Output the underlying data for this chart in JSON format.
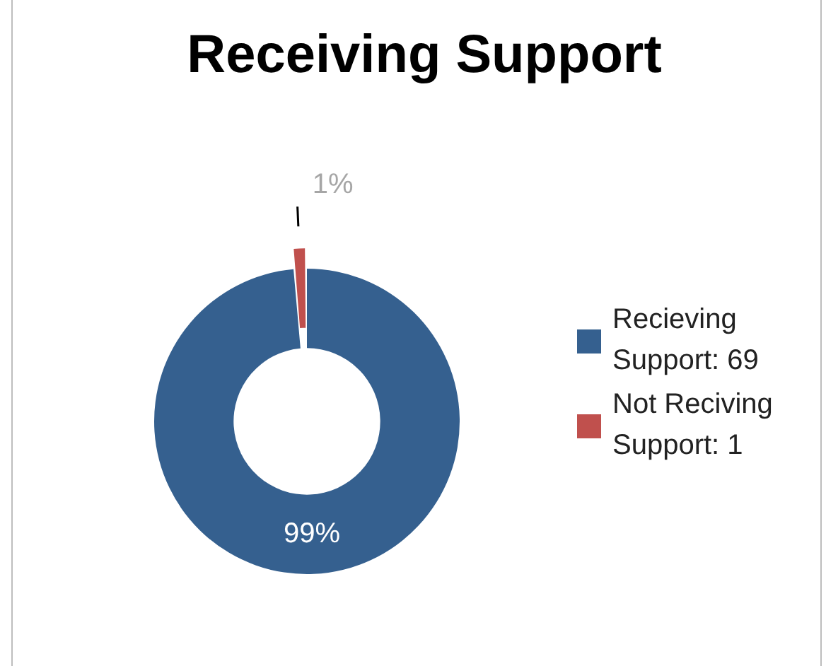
{
  "chart_data": {
    "type": "donut",
    "title": "Receiving Support",
    "categories": [
      "Recieving Support: 69",
      "Not Reciving Support: 1"
    ],
    "values": [
      98.6,
      1.4
    ],
    "colors": [
      "#35608f",
      "#c0504d"
    ],
    "value_labels": [
      "99%",
      "1%"
    ],
    "legend": "right"
  }
}
